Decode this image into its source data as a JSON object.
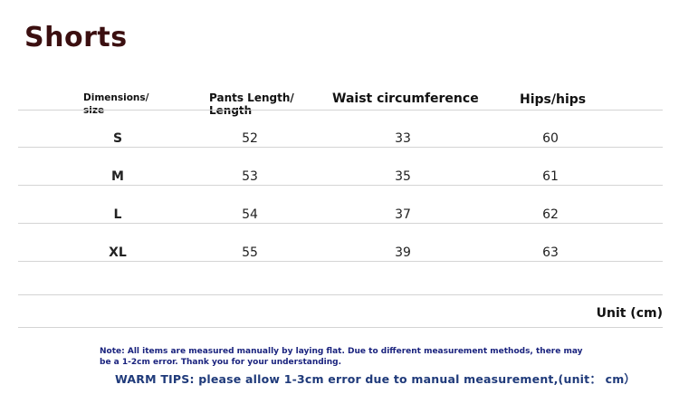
{
  "title": "Shorts",
  "table": {
    "headers": [
      "Dimensions/ size",
      "Pants Length/ Length",
      "Waist circumference",
      "Hips/hips"
    ],
    "header_lines": [
      [
        "Dimensions/",
        "size"
      ],
      [
        "Pants Length/",
        "Length"
      ]
    ],
    "rows": [
      [
        "S",
        "52",
        "33",
        "60"
      ],
      [
        "M",
        "53",
        "35",
        "61"
      ],
      [
        "L",
        "54",
        "37",
        "62"
      ],
      [
        "XL",
        "55",
        "39",
        "63"
      ]
    ]
  },
  "unit": "Unit (cm)",
  "note": "Note: All items are measured manually by laying flat. Due to different measurement methods, there may be a 1-2cm error. Thank you for your understanding.",
  "warm_tips": "WARM TIPS:  please allow 1-3cm error due to manual measurement,(unit： cm）",
  "colors": {
    "title": "#3b0f10",
    "note": "#1a237e",
    "tips": "#1f3a7a"
  }
}
